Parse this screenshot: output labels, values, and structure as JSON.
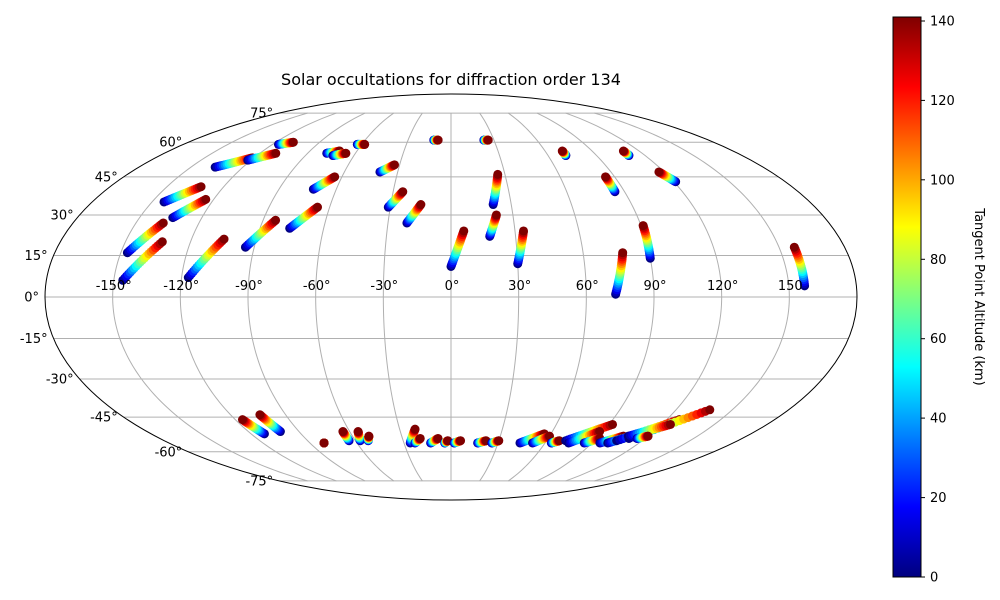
{
  "chart_data": {
    "type": "scatter",
    "projection": "mollweide",
    "title": "Solar occultations for diffraction order 134",
    "xlabel": "",
    "ylabel": "",
    "lon_ticks": [
      "-150°",
      "-120°",
      "-90°",
      "-60°",
      "-30°",
      "0°",
      "30°",
      "60°",
      "90°",
      "120°",
      "150"
    ],
    "lat_ticks": [
      "75°",
      "60°",
      "45°",
      "30°",
      "15°",
      "0°",
      "-15°",
      "-30°",
      "-45°",
      "-60°",
      "-75°"
    ],
    "grid": true,
    "colorbar": {
      "label": "Tangent Point Altitude (km)",
      "range": [
        0,
        141
      ],
      "ticks": [
        "0",
        "20",
        "40",
        "60",
        "80",
        "100",
        "120",
        "140"
      ],
      "colormap": "jet"
    },
    "colors": {
      "grid": "#b0b0b0",
      "outline": "#000000",
      "jet": [
        "#00007f",
        "#0000ff",
        "#007fff",
        "#00ffff",
        "#7fff7f",
        "#ffff00",
        "#ff7f00",
        "#ff0000",
        "#7f0000"
      ]
    },
    "tracks": [
      {
        "lon_start": -147,
        "lat_start": 16,
        "lon_end": -137,
        "lat_end": 27
      },
      {
        "lon_start": -146,
        "lat_start": 6,
        "lon_end": -133,
        "lat_end": 20
      },
      {
        "lon_start": -144,
        "lat_start": 35,
        "lon_end": -132,
        "lat_end": 41
      },
      {
        "lon_start": -134,
        "lat_start": 29,
        "lon_end": -124,
        "lat_end": 36
      },
      {
        "lon_start": -136,
        "lat_start": 49,
        "lon_end": -121,
        "lat_end": 53
      },
      {
        "lon_start": -122,
        "lat_start": 52,
        "lon_end": -110,
        "lat_end": 55
      },
      {
        "lon_start": -116,
        "lat_start": 59,
        "lon_end": -108,
        "lat_end": 60
      },
      {
        "lon_start": -117,
        "lat_start": 7,
        "lon_end": -105,
        "lat_end": 21
      },
      {
        "lon_start": -94,
        "lat_start": 18,
        "lon_end": -84,
        "lat_end": 28
      },
      {
        "lon_start": -76,
        "lat_start": 25,
        "lon_end": -66,
        "lat_end": 33
      },
      {
        "lon_start": -72,
        "lat_start": 40,
        "lon_end": -64,
        "lat_end": 45
      },
      {
        "lon_start": -78,
        "lat_start": 55,
        "lon_end": -71,
        "lat_end": 56
      },
      {
        "lon_start": -73,
        "lat_start": 54,
        "lon_end": -66,
        "lat_end": 55
      },
      {
        "lon_start": -63,
        "lat_start": 59,
        "lon_end": -58,
        "lat_end": 59
      },
      {
        "lon_start": -40,
        "lat_start": 47,
        "lon_end": -33,
        "lat_end": 50
      },
      {
        "lon_start": -31,
        "lat_start": 33,
        "lon_end": -25,
        "lat_end": 39
      },
      {
        "lon_start": -21,
        "lat_start": 27,
        "lon_end": -15,
        "lat_end": 34
      },
      {
        "lon_start": -12,
        "lat_start": 61,
        "lon_end": -9,
        "lat_end": 61
      },
      {
        "lon_start": 0,
        "lat_start": 11,
        "lon_end": 6,
        "lat_end": 24
      },
      {
        "lon_start": 18,
        "lat_start": 22,
        "lon_end": 22,
        "lat_end": 30
      },
      {
        "lon_start": 21,
        "lat_start": 34,
        "lon_end": 26,
        "lat_end": 46
      },
      {
        "lon_start": 23,
        "lat_start": 61,
        "lon_end": 26,
        "lat_end": 61
      },
      {
        "lon_start": 30,
        "lat_start": 12,
        "lon_end": 34,
        "lat_end": 24
      },
      {
        "lon_start": 73,
        "lat_start": 1,
        "lon_end": 78,
        "lat_end": 16
      },
      {
        "lon_start": 71,
        "lat_start": 54,
        "lon_end": 71,
        "lat_end": 56
      },
      {
        "lon_start": 85,
        "lat_start": 39,
        "lon_end": 85,
        "lat_end": 45
      },
      {
        "lon_start": 90,
        "lat_start": 14,
        "lon_end": 91,
        "lat_end": 26
      },
      {
        "lon_start": 110,
        "lat_start": 54,
        "lon_end": 110,
        "lat_end": 56
      },
      {
        "lon_start": 121,
        "lat_start": 43,
        "lon_end": 117,
        "lat_end": 47
      },
      {
        "lon_start": 157,
        "lat_start": 4,
        "lon_end": 157,
        "lat_end": 18
      },
      {
        "lon_start": -112,
        "lat_start": -52,
        "lon_end": -116,
        "lat_end": -46
      },
      {
        "lon_start": -101,
        "lat_start": -51,
        "lon_end": -104,
        "lat_end": -44
      },
      {
        "lon_start": -81,
        "lat_start": -56,
        "lon_end": -81,
        "lat_end": -56
      },
      {
        "lon_start": -64,
        "lat_start": -55,
        "lon_end": -64,
        "lat_end": -51
      },
      {
        "lon_start": -57,
        "lat_start": -55,
        "lon_end": -55,
        "lat_end": -51
      },
      {
        "lon_start": -52,
        "lat_start": -55,
        "lon_end": -50,
        "lat_end": -53
      },
      {
        "lon_start": -26,
        "lat_start": -56,
        "lon_end": -21,
        "lat_end": -50
      },
      {
        "lon_start": -23,
        "lat_start": -56,
        "lon_end": -19,
        "lat_end": -54
      },
      {
        "lon_start": -13,
        "lat_start": -56,
        "lon_end": -8,
        "lat_end": -54
      },
      {
        "lon_start": -4,
        "lat_start": -56,
        "lon_end": -2,
        "lat_end": -55
      },
      {
        "lon_start": 2,
        "lat_start": -56,
        "lon_end": 6,
        "lat_end": -55
      },
      {
        "lon_start": 17,
        "lat_start": -56,
        "lon_end": 22,
        "lat_end": -55
      },
      {
        "lon_start": 26,
        "lat_start": -56,
        "lon_end": 30,
        "lat_end": -55
      },
      {
        "lon_start": 44,
        "lat_start": -56,
        "lon_end": 56,
        "lat_end": -52
      },
      {
        "lon_start": 52,
        "lat_start": -56,
        "lon_end": 60,
        "lat_end": -53
      },
      {
        "lon_start": 64,
        "lat_start": -56,
        "lon_end": 68,
        "lat_end": -55
      },
      {
        "lon_start": 72,
        "lat_start": -55,
        "lon_end": 92,
        "lat_end": -48
      },
      {
        "lon_start": 75,
        "lat_start": -56,
        "lon_end": 88,
        "lat_end": -51
      },
      {
        "lon_start": 85,
        "lat_start": -56,
        "lon_end": 92,
        "lat_end": -54
      },
      {
        "lon_start": 95,
        "lat_start": -56,
        "lon_end": 105,
        "lat_end": -53
      },
      {
        "lon_start": 100,
        "lat_start": -56,
        "lon_end": 113,
        "lat_end": -52
      },
      {
        "lon_start": 104,
        "lat_start": -55,
        "lon_end": 127,
        "lat_end": -46
      },
      {
        "lon_start": 110,
        "lat_start": -54,
        "lon_end": 138,
        "lat_end": -42
      },
      {
        "lon_start": 108,
        "lat_start": -53,
        "lon_end": 125,
        "lat_end": -48
      },
      {
        "lon_start": 115,
        "lat_start": -54,
        "lon_end": 120,
        "lat_end": -53
      }
    ]
  }
}
